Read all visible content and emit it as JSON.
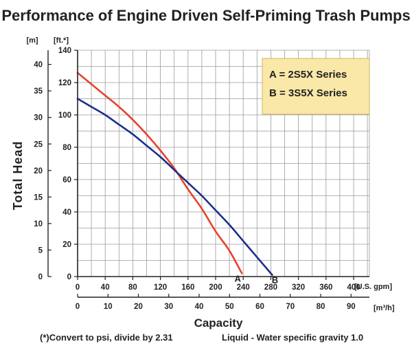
{
  "chart_data": {
    "type": "line",
    "title": "Performance of Engine Driven Self-Priming Trash Pumps",
    "ylabel": "Total Head",
    "xlabel": "Capacity",
    "y_unit_left": "[m]",
    "y_unit_right": "[ft.*]",
    "x_unit_primary": "[U.S. gpm]",
    "x_unit_secondary": "[m³/h]",
    "x_primary_ticks": [
      0,
      40,
      80,
      120,
      160,
      200,
      240,
      280,
      320,
      360,
      400
    ],
    "x_secondary_ticks": [
      0,
      10,
      20,
      30,
      40,
      50,
      60,
      70,
      80,
      90
    ],
    "y_ft_ticks": [
      0,
      20,
      40,
      60,
      80,
      100,
      120,
      140
    ],
    "y_m_ticks": [
      0,
      5,
      10,
      15,
      20,
      25,
      30,
      35,
      40
    ],
    "xlim": [
      0,
      420
    ],
    "ylim": [
      0,
      140
    ],
    "grid": true,
    "series": [
      {
        "name": "A",
        "color": "#e8412c",
        "points": [
          [
            0,
            126
          ],
          [
            20,
            119
          ],
          [
            40,
            112
          ],
          [
            60,
            105
          ],
          [
            80,
            97
          ],
          [
            100,
            88
          ],
          [
            120,
            78
          ],
          [
            140,
            67
          ],
          [
            160,
            54
          ],
          [
            180,
            42
          ],
          [
            200,
            28
          ],
          [
            220,
            16
          ],
          [
            238,
            2
          ]
        ]
      },
      {
        "name": "B",
        "color": "#1c2f8a",
        "points": [
          [
            0,
            110
          ],
          [
            20,
            105
          ],
          [
            40,
            100
          ],
          [
            60,
            94
          ],
          [
            80,
            88
          ],
          [
            100,
            81
          ],
          [
            120,
            74
          ],
          [
            140,
            66
          ],
          [
            160,
            58
          ],
          [
            180,
            50
          ],
          [
            200,
            41
          ],
          [
            220,
            32
          ],
          [
            240,
            22
          ],
          [
            260,
            12
          ],
          [
            282,
            1
          ]
        ]
      }
    ],
    "legend": {
      "entries": [
        "A = 2S5X Series",
        "B = 3S5X Series"
      ],
      "position": "top-right",
      "background": "#f9e8a8"
    },
    "footnotes": {
      "left": "(*)Convert to psi, divide by 2.31",
      "right": "Liquid - Water specific gravity 1.0"
    }
  }
}
